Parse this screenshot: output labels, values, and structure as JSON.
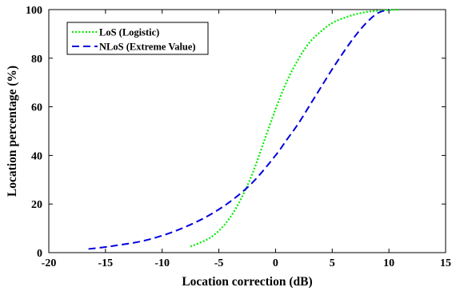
{
  "chart_data": {
    "type": "line",
    "title": "",
    "xlabel": "Location correction (dB)",
    "ylabel": "Location percentage (%)",
    "xlim": [
      -20,
      15
    ],
    "ylim": [
      0,
      100
    ],
    "xticks": [
      -20,
      -15,
      -10,
      -5,
      0,
      5,
      10,
      15
    ],
    "yticks": [
      0,
      20,
      40,
      60,
      80,
      100
    ],
    "grid": false,
    "legend_position": "top-left",
    "series": [
      {
        "name": "LoS (Logistic)",
        "color": "#00ee00",
        "style": "dotted",
        "x": [
          -7.5,
          -6,
          -5,
          -4,
          -3,
          -2,
          -1,
          0,
          1,
          2,
          3,
          4,
          5,
          6,
          7,
          8,
          9,
          10,
          11
        ],
        "y": [
          2.5,
          5.5,
          9,
          14.5,
          22.5,
          33,
          46,
          59,
          70.5,
          79.5,
          86.5,
          91,
          94.5,
          96.5,
          98,
          99,
          99.5,
          99.8,
          100
        ]
      },
      {
        "name": "NLoS (Extreme Value)",
        "color": "#0000dd",
        "style": "dashed",
        "x": [
          -16.5,
          -15,
          -14,
          -12,
          -10,
          -8,
          -6,
          -4,
          -2,
          0,
          1,
          2,
          3,
          4,
          5,
          6,
          7,
          8,
          9,
          10
        ],
        "y": [
          1.5,
          2.3,
          3,
          4.5,
          7,
          10.5,
          15,
          21,
          29,
          40,
          46.5,
          53,
          60.5,
          68,
          75.5,
          82.5,
          89,
          94.5,
          98.5,
          100
        ]
      }
    ]
  }
}
